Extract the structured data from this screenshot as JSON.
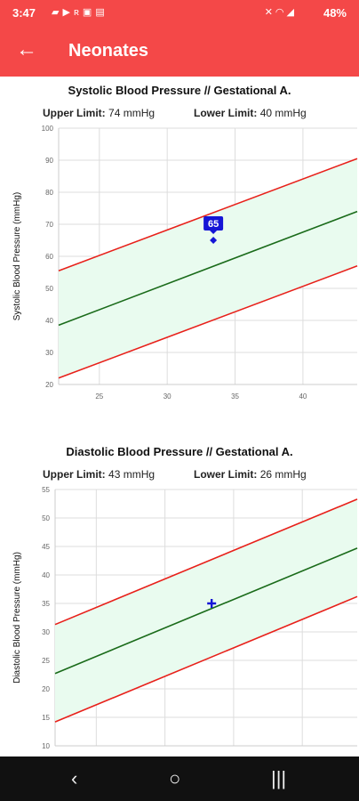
{
  "status_bar": {
    "time": "3:47",
    "left_icons": [
      "chat-icon",
      "youtube-icon",
      "app-icon",
      "image-icon",
      "sms-icon"
    ],
    "right_icons": [
      "mute-icon",
      "wifi-icon",
      "signal-icon"
    ],
    "battery": "48%"
  },
  "app_bar": {
    "title": "Neonates",
    "back_icon": "back-arrow-icon"
  },
  "colors": {
    "accent": "#f44848",
    "limit_line": "#e8201a",
    "mean_line": "#1a6b1a",
    "band": "#e9fbef",
    "point": "#1515d6"
  },
  "chart_data": [
    {
      "type": "line",
      "title": "Systolic Blood Pressure // Gestational A.",
      "upper_limit_label": "Upper Limit:",
      "upper_limit_value": "74 mmHg",
      "lower_limit_label": "Lower Limit:",
      "lower_limit_value": "40 mmHg",
      "ylabel": "Systolic Blood Pressure (mmHg)",
      "xlim": [
        22,
        44
      ],
      "ylim": [
        20,
        100
      ],
      "xticks": [
        25,
        30,
        35,
        40
      ],
      "yticks": [
        20,
        30,
        40,
        50,
        60,
        70,
        80,
        90,
        100
      ],
      "grid": true,
      "series": [
        {
          "role": "upper",
          "x": [
            22,
            44
          ],
          "y": [
            55.5,
            90.5
          ]
        },
        {
          "role": "mean",
          "x": [
            22,
            44
          ],
          "y": [
            38.5,
            74
          ]
        },
        {
          "role": "lower",
          "x": [
            22,
            44
          ],
          "y": [
            22,
            57
          ]
        }
      ],
      "point": {
        "x": 33.4,
        "y": 65,
        "label": "65"
      }
    },
    {
      "type": "line",
      "title": "Diastolic Blood Pressure // Gestational A.",
      "upper_limit_label": "Upper Limit:",
      "upper_limit_value": "43 mmHg",
      "lower_limit_label": "Lower Limit:",
      "lower_limit_value": "26 mmHg",
      "ylabel": "Diastolic Blood Pressure (mmHg)",
      "xlim": [
        22,
        44
      ],
      "ylim": [
        10,
        55
      ],
      "xticks": [
        25,
        30,
        35,
        40
      ],
      "yticks": [
        10,
        15,
        20,
        25,
        30,
        35,
        40,
        45,
        50,
        55
      ],
      "grid": true,
      "series": [
        {
          "role": "upper",
          "x": [
            22,
            44
          ],
          "y": [
            31.3,
            53.3
          ]
        },
        {
          "role": "mean",
          "x": [
            22,
            44
          ],
          "y": [
            22.7,
            44.7
          ]
        },
        {
          "role": "lower",
          "x": [
            22,
            44
          ],
          "y": [
            14.2,
            36.2
          ]
        }
      ],
      "point": {
        "x": 33.4,
        "y": 35,
        "label": ""
      }
    }
  ]
}
